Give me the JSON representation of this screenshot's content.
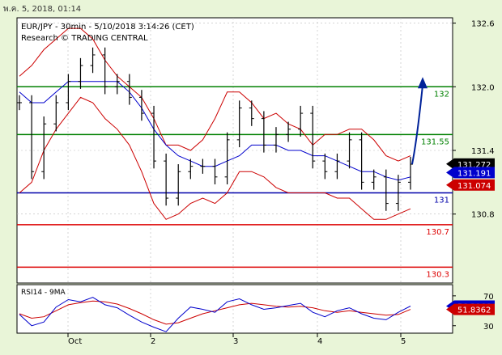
{
  "timestamp": "พ.ค. 5, 2018, 01:14",
  "colors": {
    "background": "#e9f5d8",
    "panel": "#ffffff",
    "price": "#000000",
    "bollinger": "#cc0000",
    "moving_average": "#0000cc",
    "support_resistance_green": "#008000",
    "pivot_blue": "#0000aa",
    "support_red": "#dd0000",
    "forecast_arrow": "#002299"
  },
  "chart_data": [
    {
      "type": "candlestick",
      "title": "EUR/JPY - 30min - 5/10/2018 3:14:26 (CET)",
      "subtitle": "Research © TRADING CENTRAL",
      "x_ticks": [
        "Oct",
        "2",
        "3",
        "4",
        "5"
      ],
      "y_ticks": [
        {
          "value": 132.6,
          "label": "132.6"
        },
        {
          "value": 132.0,
          "label": "132.0"
        },
        {
          "value": 131.4,
          "label": "131.4"
        },
        {
          "value": 130.8,
          "label": "130.8"
        }
      ],
      "ylim": [
        130.15,
        132.65
      ],
      "grid": true,
      "series": [
        {
          "name": "EUR/JPY",
          "values": [
            131.85,
            131.2,
            131.65,
            131.85,
            132.05,
            132.2,
            132.3,
            132.0,
            132.05,
            131.9,
            131.75,
            131.3,
            130.95,
            131.2,
            131.25,
            131.25,
            131.15,
            131.5,
            131.8,
            131.7,
            131.45,
            131.55,
            131.6,
            131.75,
            131.3,
            131.2,
            131.3,
            131.5,
            131.1,
            131.15,
            130.9,
            131.1,
            131.27
          ]
        },
        {
          "name": "bollinger_upper",
          "values": [
            132.1,
            132.2,
            132.35,
            132.45,
            132.55,
            132.55,
            132.45,
            132.25,
            132.1,
            132.0,
            131.9,
            131.7,
            131.45,
            131.45,
            131.4,
            131.5,
            131.7,
            131.95,
            131.95,
            131.85,
            131.7,
            131.75,
            131.65,
            131.6,
            131.45,
            131.55,
            131.55,
            131.6,
            131.6,
            131.5,
            131.35,
            131.3,
            131.35
          ]
        },
        {
          "name": "bollinger_lower",
          "values": [
            131.0,
            131.1,
            131.4,
            131.6,
            131.75,
            131.9,
            131.85,
            131.7,
            131.6,
            131.45,
            131.2,
            130.9,
            130.75,
            130.8,
            130.9,
            130.95,
            130.9,
            131.0,
            131.2,
            131.2,
            131.15,
            131.05,
            131.0,
            131.0,
            131.0,
            131.0,
            130.95,
            130.95,
            130.85,
            130.75,
            130.75,
            130.8,
            130.85
          ]
        },
        {
          "name": "moving_average",
          "values": [
            131.95,
            131.85,
            131.85,
            131.95,
            132.05,
            132.05,
            132.05,
            132.05,
            132.05,
            131.95,
            131.8,
            131.6,
            131.45,
            131.35,
            131.3,
            131.25,
            131.25,
            131.3,
            131.35,
            131.45,
            131.45,
            131.45,
            131.4,
            131.4,
            131.35,
            131.35,
            131.3,
            131.25,
            131.2,
            131.2,
            131.15,
            131.12,
            131.15
          ]
        }
      ],
      "levels": [
        {
          "value": 132.0,
          "label": "132",
          "color": "#008000"
        },
        {
          "value": 131.55,
          "label": "131.55",
          "color": "#008000"
        },
        {
          "value": 131.0,
          "label": "131",
          "color": "#0000aa"
        },
        {
          "value": 130.7,
          "label": "130.7",
          "color": "#dd0000"
        },
        {
          "value": 130.3,
          "label": "130.3",
          "color": "#dd0000"
        }
      ],
      "badges": [
        {
          "value": 131.272,
          "label": "131.272",
          "background": "#000000"
        },
        {
          "value": 131.191,
          "label": "131.191",
          "background": "#0000cc"
        },
        {
          "value": 131.074,
          "label": "131.074",
          "background": "#cc0000"
        }
      ],
      "forecast": {
        "from": 131.27,
        "to": 132.0
      }
    },
    {
      "type": "line",
      "title": "RSI14 - 9MA",
      "y_ticks": [
        {
          "value": 70,
          "label": "70"
        },
        {
          "value": 30,
          "label": "30"
        }
      ],
      "ylim": [
        20,
        85
      ],
      "series": [
        {
          "name": "RSI14",
          "values": [
            45,
            30,
            35,
            55,
            65,
            62,
            68,
            58,
            54,
            44,
            35,
            28,
            22,
            40,
            55,
            52,
            48,
            62,
            66,
            58,
            52,
            54,
            57,
            60,
            48,
            42,
            50,
            54,
            46,
            40,
            38,
            48,
            56.3066
          ]
        },
        {
          "name": "9MA",
          "values": [
            46,
            40,
            42,
            50,
            58,
            61,
            63,
            62,
            59,
            53,
            46,
            38,
            32,
            34,
            40,
            46,
            50,
            54,
            58,
            60,
            58,
            56,
            55,
            56,
            54,
            50,
            48,
            50,
            48,
            46,
            44,
            45,
            51.8362
          ]
        }
      ],
      "badges": [
        {
          "value": 56.3066,
          "label": "56.3066",
          "background": "#0000cc"
        },
        {
          "value": 51.8362,
          "label": "51.8362",
          "background": "#cc0000"
        }
      ]
    }
  ]
}
